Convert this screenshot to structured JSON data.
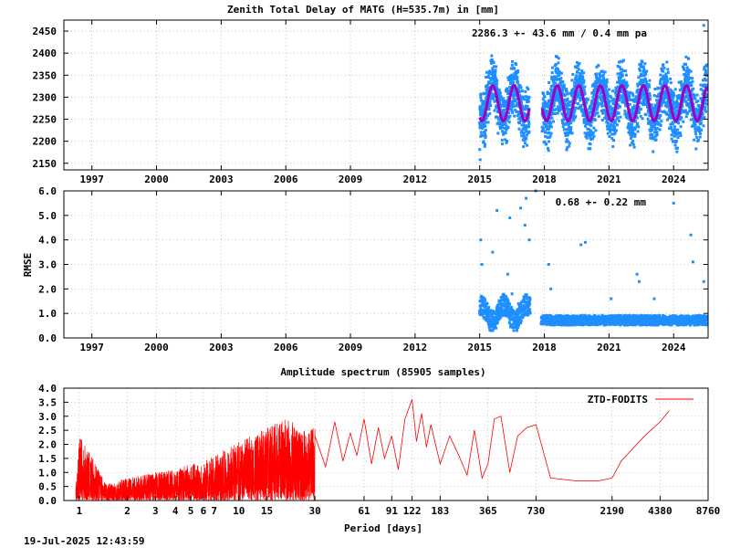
{
  "footer": {
    "timestamp": "19-Jul-2025 12:43:59"
  },
  "colors": {
    "ztd": "#1f8fff",
    "fit": "#a000c0",
    "spectrum": "#ff0000",
    "grid": "#a0a0a0"
  },
  "chart_data": [
    {
      "type": "scatter",
      "title": "Zenith Total Delay of MATG (H=535.7m) in [mm]",
      "annotation": "2286.3 +-  43.6 mm /  0.4 mm pa",
      "xlabel": "",
      "ylabel": "",
      "xlim": [
        1995.7,
        2025.6
      ],
      "ylim": [
        2135,
        2475
      ],
      "grid": true,
      "x_ticks": [
        1997,
        2000,
        2003,
        2006,
        2009,
        2012,
        2015,
        2018,
        2021,
        2024
      ],
      "y_ticks": [
        2150,
        2200,
        2250,
        2300,
        2350,
        2400,
        2450
      ],
      "series": [
        {
          "role": "ztd-observations",
          "color": "#1f8fff",
          "x": [
            2015.0,
            2015.2,
            2015.4,
            2015.6,
            2015.8,
            2016.0,
            2016.2,
            2016.4,
            2016.6,
            2016.8,
            2017.0,
            2017.3,
            2017.9,
            2018.1,
            2018.3,
            2018.5,
            2018.7,
            2018.9,
            2019.1,
            2019.3,
            2019.5,
            2019.7,
            2019.9,
            2020.1,
            2020.3,
            2020.5,
            2020.7,
            2020.9,
            2021.1,
            2021.3,
            2021.5,
            2021.7,
            2021.9,
            2022.1,
            2022.3,
            2022.5,
            2022.7,
            2022.9,
            2023.1,
            2023.3,
            2023.5,
            2023.7,
            2023.9,
            2024.1,
            2024.3,
            2024.5,
            2024.7,
            2024.9,
            2025.1,
            2025.3,
            2025.5
          ],
          "y": [
            2242,
            2270,
            2318,
            2360,
            2330,
            2262,
            2248,
            2312,
            2365,
            2318,
            2262,
            2300,
            2232,
            2260,
            2318,
            2372,
            2330,
            2258,
            2252,
            2312,
            2370,
            2335,
            2260,
            2246,
            2305,
            2372,
            2338,
            2258,
            2250,
            2310,
            2368,
            2330,
            2262,
            2248,
            2312,
            2375,
            2336,
            2258,
            2246,
            2306,
            2372,
            2340,
            2262,
            2250,
            2316,
            2375,
            2340,
            2262,
            2248,
            2318,
            2370
          ],
          "spread": 55
        },
        {
          "role": "seasonal-fit",
          "color": "#a000c0",
          "mean": 2286.3,
          "amplitude": 40,
          "period_years": 1.0,
          "phase_peak": 0.6,
          "segments": [
            [
              2015.0,
              2017.3
            ],
            [
              2017.9,
              2025.55
            ]
          ]
        }
      ],
      "extremes": {
        "low": 2158,
        "high": 2463
      }
    },
    {
      "type": "scatter",
      "title": "",
      "annotation": "0.68 +-  0.22 mm",
      "xlabel": "",
      "ylabel": "RMSE",
      "xlim": [
        1995.7,
        2025.6
      ],
      "ylim": [
        0.0,
        6.0
      ],
      "grid": true,
      "x_ticks": [
        1997,
        2000,
        2003,
        2006,
        2009,
        2012,
        2015,
        2018,
        2021,
        2024
      ],
      "y_ticks": [
        "0.0",
        "1.0",
        "2.0",
        "3.0",
        "4.0",
        "5.0",
        "6.0"
      ],
      "series": [
        {
          "role": "rmse",
          "color": "#1f8fff",
          "x": [
            2015.0,
            2015.3,
            2015.6,
            2015.9,
            2016.2,
            2016.5,
            2016.8,
            2017.1,
            2017.3,
            2017.9,
            2018.3,
            2018.8,
            2019.3,
            2019.8,
            2020.3,
            2020.8,
            2021.3,
            2021.8,
            2022.3,
            2022.8,
            2023.3,
            2023.8,
            2024.3,
            2024.8,
            2025.3,
            2025.5
          ],
          "y": [
            1.0,
            1.3,
            1.1,
            1.5,
            1.2,
            1.8,
            1.4,
            1.2,
            1.0,
            0.8,
            0.9,
            0.75,
            0.7,
            0.7,
            0.65,
            0.65,
            0.65,
            0.7,
            0.65,
            0.7,
            0.7,
            0.75,
            0.75,
            0.8,
            0.8,
            0.85
          ],
          "outliers": [
            [
              2015.05,
              4.0
            ],
            [
              2015.1,
              3.0
            ],
            [
              2015.6,
              3.5
            ],
            [
              2015.8,
              5.2
            ],
            [
              2016.3,
              2.6
            ],
            [
              2016.4,
              4.9
            ],
            [
              2016.9,
              5.3
            ],
            [
              2017.1,
              4.6
            ],
            [
              2017.15,
              5.7
            ],
            [
              2017.3,
              4.0
            ],
            [
              2017.6,
              6.0
            ],
            [
              2018.2,
              3.0
            ],
            [
              2018.3,
              2.0
            ],
            [
              2019.7,
              3.8
            ],
            [
              2019.9,
              3.9
            ],
            [
              2021.1,
              1.6
            ],
            [
              2022.3,
              2.6
            ],
            [
              2022.4,
              2.3
            ],
            [
              2023.1,
              1.6
            ],
            [
              2024.0,
              5.5
            ],
            [
              2024.8,
              4.2
            ],
            [
              2024.9,
              3.1
            ],
            [
              2025.4,
              2.3
            ]
          ]
        }
      ]
    },
    {
      "type": "line",
      "title": "Amplitude spectrum (85905 samples)",
      "xlabel": "Period [days]",
      "ylabel": "",
      "x_scale": "log",
      "xlim": [
        0.8,
        8760
      ],
      "ylim": [
        0.0,
        4.0
      ],
      "grid": true,
      "x_ticks": [
        1,
        2,
        3,
        4,
        5,
        6,
        7,
        10,
        15,
        30,
        61,
        91,
        122,
        183,
        365,
        730,
        2190,
        4380,
        8760
      ],
      "y_ticks": [
        "0.0",
        "0.5",
        "1.0",
        "1.5",
        "2.0",
        "2.5",
        "3.0",
        "3.5",
        "4.0"
      ],
      "legend": "top-right",
      "series": [
        {
          "name": "ZTD-FODITS",
          "color": "#ff0000",
          "envelope_x": [
            0.95,
            1.0,
            1.5,
            2,
            3,
            4,
            5,
            6,
            7,
            8,
            10,
            12,
            15,
            18,
            20,
            25,
            30
          ],
          "envelope_y": [
            0.5,
            2.3,
            0.6,
            0.8,
            1.0,
            1.1,
            1.3,
            1.4,
            1.6,
            1.8,
            2.1,
            2.3,
            2.6,
            2.8,
            3.0,
            2.5,
            2.6
          ],
          "x": [
            30,
            35,
            40,
            45,
            50,
            55,
            61,
            68,
            75,
            82,
            91,
            100,
            110,
            122,
            130,
            140,
            150,
            160,
            183,
            210,
            240,
            270,
            300,
            335,
            365,
            400,
            440,
            500,
            560,
            640,
            730,
            900,
            1300,
            1800,
            2190,
            2500,
            3500,
            4380,
            5000
          ],
          "y": [
            2.3,
            1.2,
            2.8,
            1.4,
            2.4,
            1.6,
            2.9,
            1.3,
            2.6,
            1.5,
            2.3,
            1.1,
            2.9,
            3.6,
            2.1,
            3.1,
            1.9,
            2.7,
            1.3,
            2.3,
            1.6,
            0.9,
            2.5,
            0.8,
            1.3,
            2.9,
            3.0,
            1.0,
            2.3,
            2.6,
            2.7,
            0.8,
            0.7,
            0.7,
            0.8,
            1.4,
            2.3,
            2.8,
            3.2
          ]
        }
      ]
    }
  ]
}
